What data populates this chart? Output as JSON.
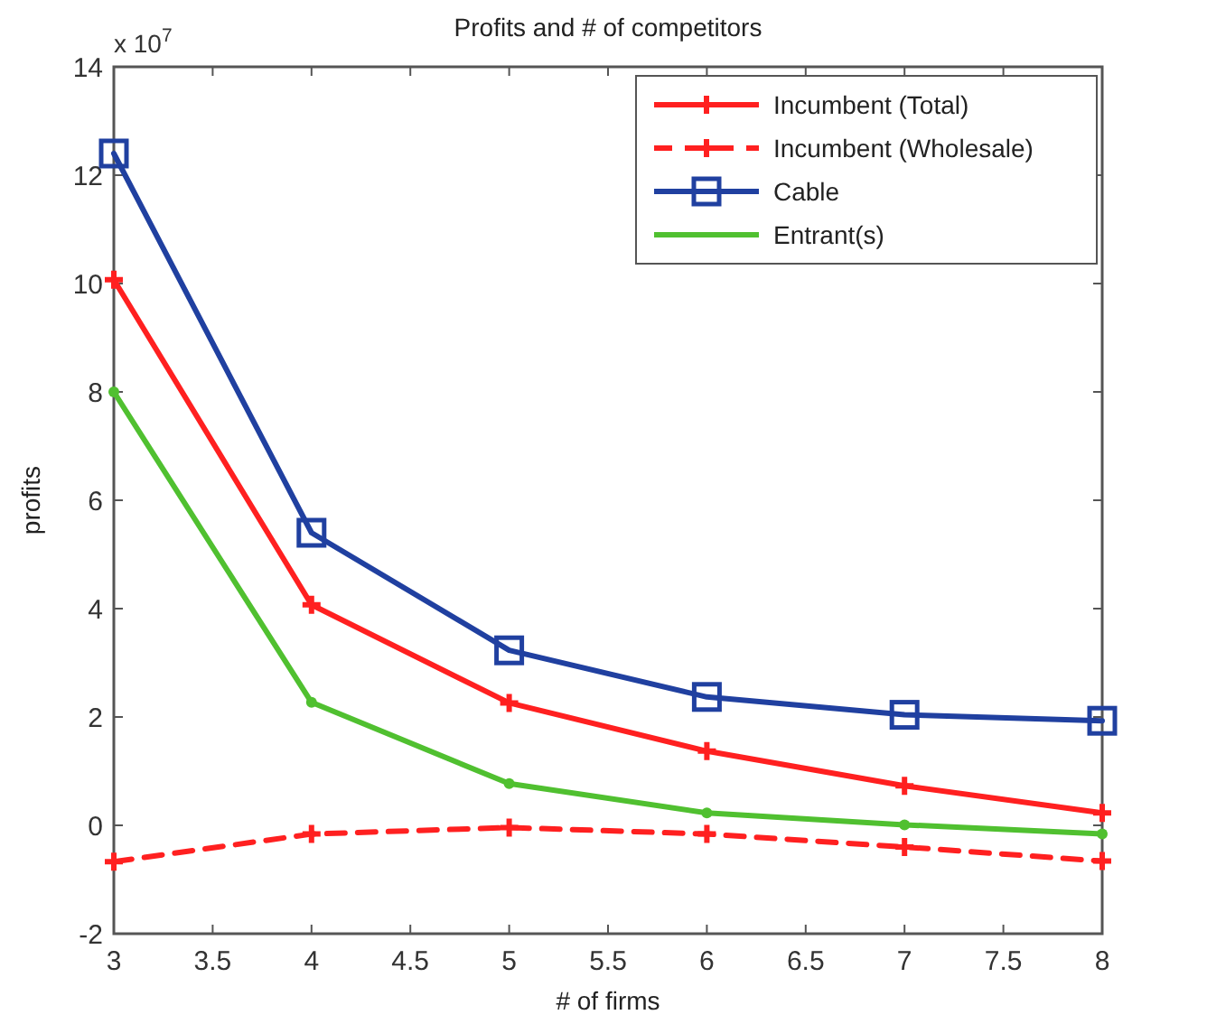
{
  "chart_data": {
    "type": "line",
    "title": "Profits and # of competitors",
    "xlabel": "# of firms",
    "ylabel": "profits",
    "annotations": [
      "x 10$^{7}$"
    ],
    "x": [
      3,
      4,
      5,
      6,
      7,
      8
    ],
    "series": [
      {
        "name": "Incumbent (Total)",
        "color": "#ff2020",
        "marker": "cross",
        "line_style": "solid",
        "values": [
          10.07,
          4.07,
          2.26,
          1.37,
          0.73,
          0.23
        ]
      },
      {
        "name": "Incumbent (Wholesale)",
        "color": "#ff2020",
        "marker": "cross",
        "line_style": "dashed",
        "values": [
          -0.67,
          -0.16,
          -0.04,
          -0.16,
          -0.4,
          -0.66
        ]
      },
      {
        "name": "Cable",
        "color": "#2040a0",
        "marker": "square",
        "line_style": "solid",
        "values": [
          12.4,
          5.4,
          3.23,
          2.37,
          2.04,
          1.93
        ]
      },
      {
        "name": "Entrant(s)",
        "color": "#50c030",
        "marker": "circle",
        "line_style": "solid",
        "values": [
          8.0,
          2.27,
          0.77,
          0.23,
          0.01,
          -0.16
        ]
      }
    ],
    "xlim": [
      3,
      8
    ],
    "xticks": [
      3,
      3.5,
      4,
      4.5,
      5,
      5.5,
      6,
      6.5,
      7,
      7.5,
      8
    ],
    "ylim": [
      -2,
      14
    ],
    "yticks": [
      -2,
      0,
      2,
      4,
      6,
      8,
      10,
      12,
      14
    ],
    "grid": false,
    "legend": "top right"
  }
}
